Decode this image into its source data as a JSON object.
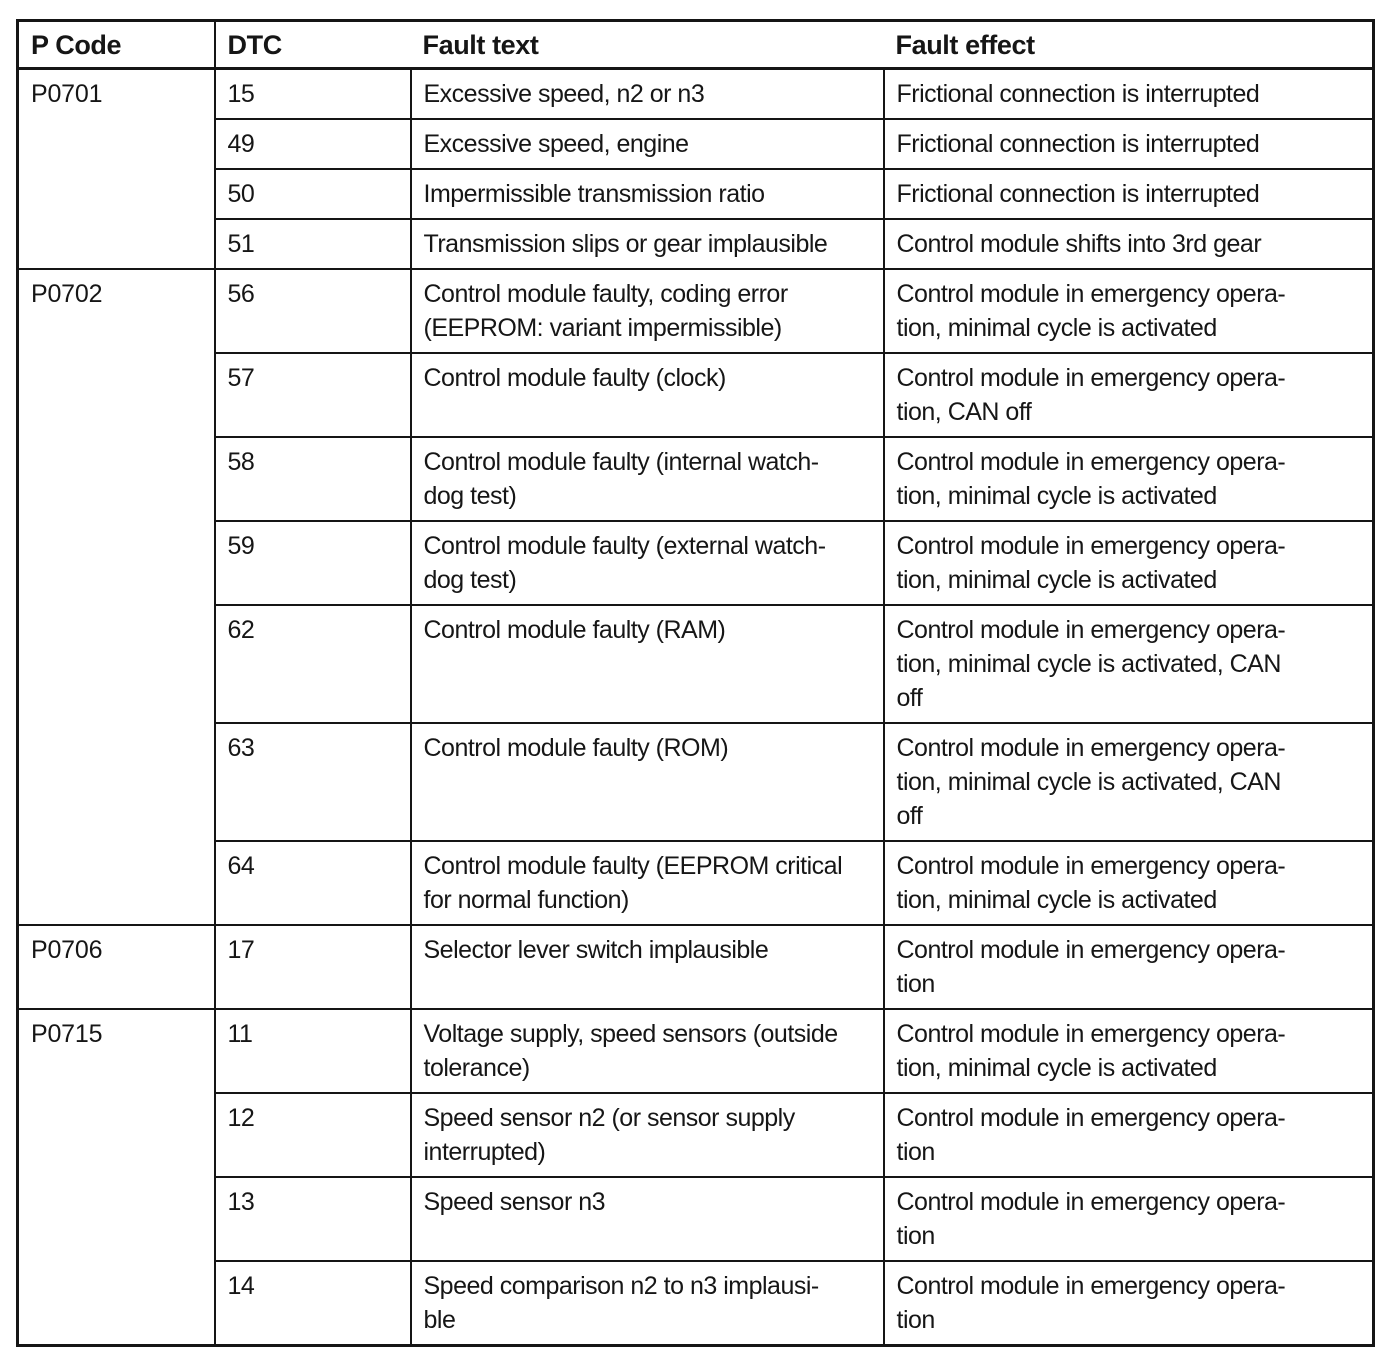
{
  "page": {
    "background": "#ffffff",
    "text_color": "#161616",
    "border_color": "#151515"
  },
  "table": {
    "headers": [
      "P Code",
      "DTC",
      "Fault text",
      "Fault effect"
    ],
    "groups": [
      {
        "p_code": "P0701",
        "rows": [
          {
            "dtc": "15",
            "fault_text": "Excessive speed, n2 or n3",
            "fault_effect": "Frictional connection is interrupted"
          },
          {
            "dtc": "49",
            "fault_text": "Excessive speed, engine",
            "fault_effect": "Frictional connection is interrupted"
          },
          {
            "dtc": "50",
            "fault_text": "Impermissible transmission ratio",
            "fault_effect": "Frictional connection is interrupted"
          },
          {
            "dtc": "51",
            "fault_text": "Transmission slips or gear implausible",
            "fault_effect": "Control module shifts into 3rd gear"
          }
        ]
      },
      {
        "p_code": "P0702",
        "rows": [
          {
            "dtc": "56",
            "fault_text": "Control module faulty, coding error\n(EEPROM: variant impermissible)",
            "fault_effect": "Control module in emergency opera-\ntion, minimal cycle is activated"
          },
          {
            "dtc": "57",
            "fault_text": "Control module faulty (clock)",
            "fault_effect": "Control module in emergency opera-\ntion, CAN off"
          },
          {
            "dtc": "58",
            "fault_text": "Control module faulty (internal watch-\ndog test)",
            "fault_effect": "Control module in emergency opera-\ntion, minimal cycle is activated"
          },
          {
            "dtc": "59",
            "fault_text": "Control module faulty (external watch-\ndog test)",
            "fault_effect": "Control module in emergency opera-\ntion, minimal cycle is activated"
          },
          {
            "dtc": "62",
            "fault_text": "Control module faulty (RAM)",
            "fault_effect": "Control module in emergency opera-\ntion, minimal cycle is activated, CAN\noff"
          },
          {
            "dtc": "63",
            "fault_text": "Control module faulty (ROM)",
            "fault_effect": "Control module in emergency opera-\ntion, minimal cycle is activated, CAN\noff"
          },
          {
            "dtc": "64",
            "fault_text": "Control module faulty (EEPROM critical\nfor normal function)",
            "fault_effect": "Control module in emergency opera-\ntion, minimal cycle is activated"
          }
        ]
      },
      {
        "p_code": "P0706",
        "rows": [
          {
            "dtc": "17",
            "fault_text": "Selector lever switch implausible",
            "fault_effect": "Control module in emergency opera-\ntion"
          }
        ]
      },
      {
        "p_code": "P0715",
        "rows": [
          {
            "dtc": "11",
            "fault_text": "Voltage supply, speed sensors (outside\ntolerance)",
            "fault_effect": "Control module in emergency opera-\ntion, minimal cycle is activated"
          },
          {
            "dtc": "12",
            "fault_text": "Speed sensor n2 (or sensor supply\ninterrupted)",
            "fault_effect": "Control module in emergency opera-\ntion"
          },
          {
            "dtc": "13",
            "fault_text": "Speed sensor n3",
            "fault_effect": "Control module in emergency opera-\ntion"
          },
          {
            "dtc": "14",
            "fault_text": "Speed comparison n2 to n3 implausi-\nble",
            "fault_effect": "Control module in emergency opera-\ntion"
          }
        ]
      }
    ]
  }
}
